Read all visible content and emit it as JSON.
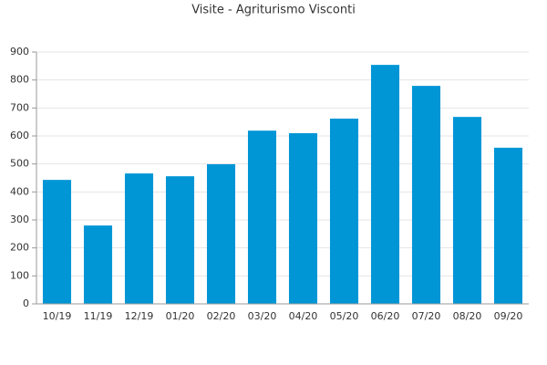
{
  "chart_data": {
    "type": "bar",
    "title": "Visite - Agriturismo Visconti",
    "categories": [
      "10/19",
      "11/19",
      "12/19",
      "01/20",
      "02/20",
      "03/20",
      "04/20",
      "05/20",
      "06/20",
      "07/20",
      "08/20",
      "09/20"
    ],
    "values": [
      443,
      280,
      466,
      456,
      499,
      619,
      610,
      662,
      854,
      779,
      668,
      558
    ],
    "color": "#0096d6",
    "ylim": [
      0,
      900
    ],
    "yticks": [
      0,
      100,
      200,
      300,
      400,
      500,
      600,
      700,
      800,
      900
    ],
    "grid": true
  }
}
